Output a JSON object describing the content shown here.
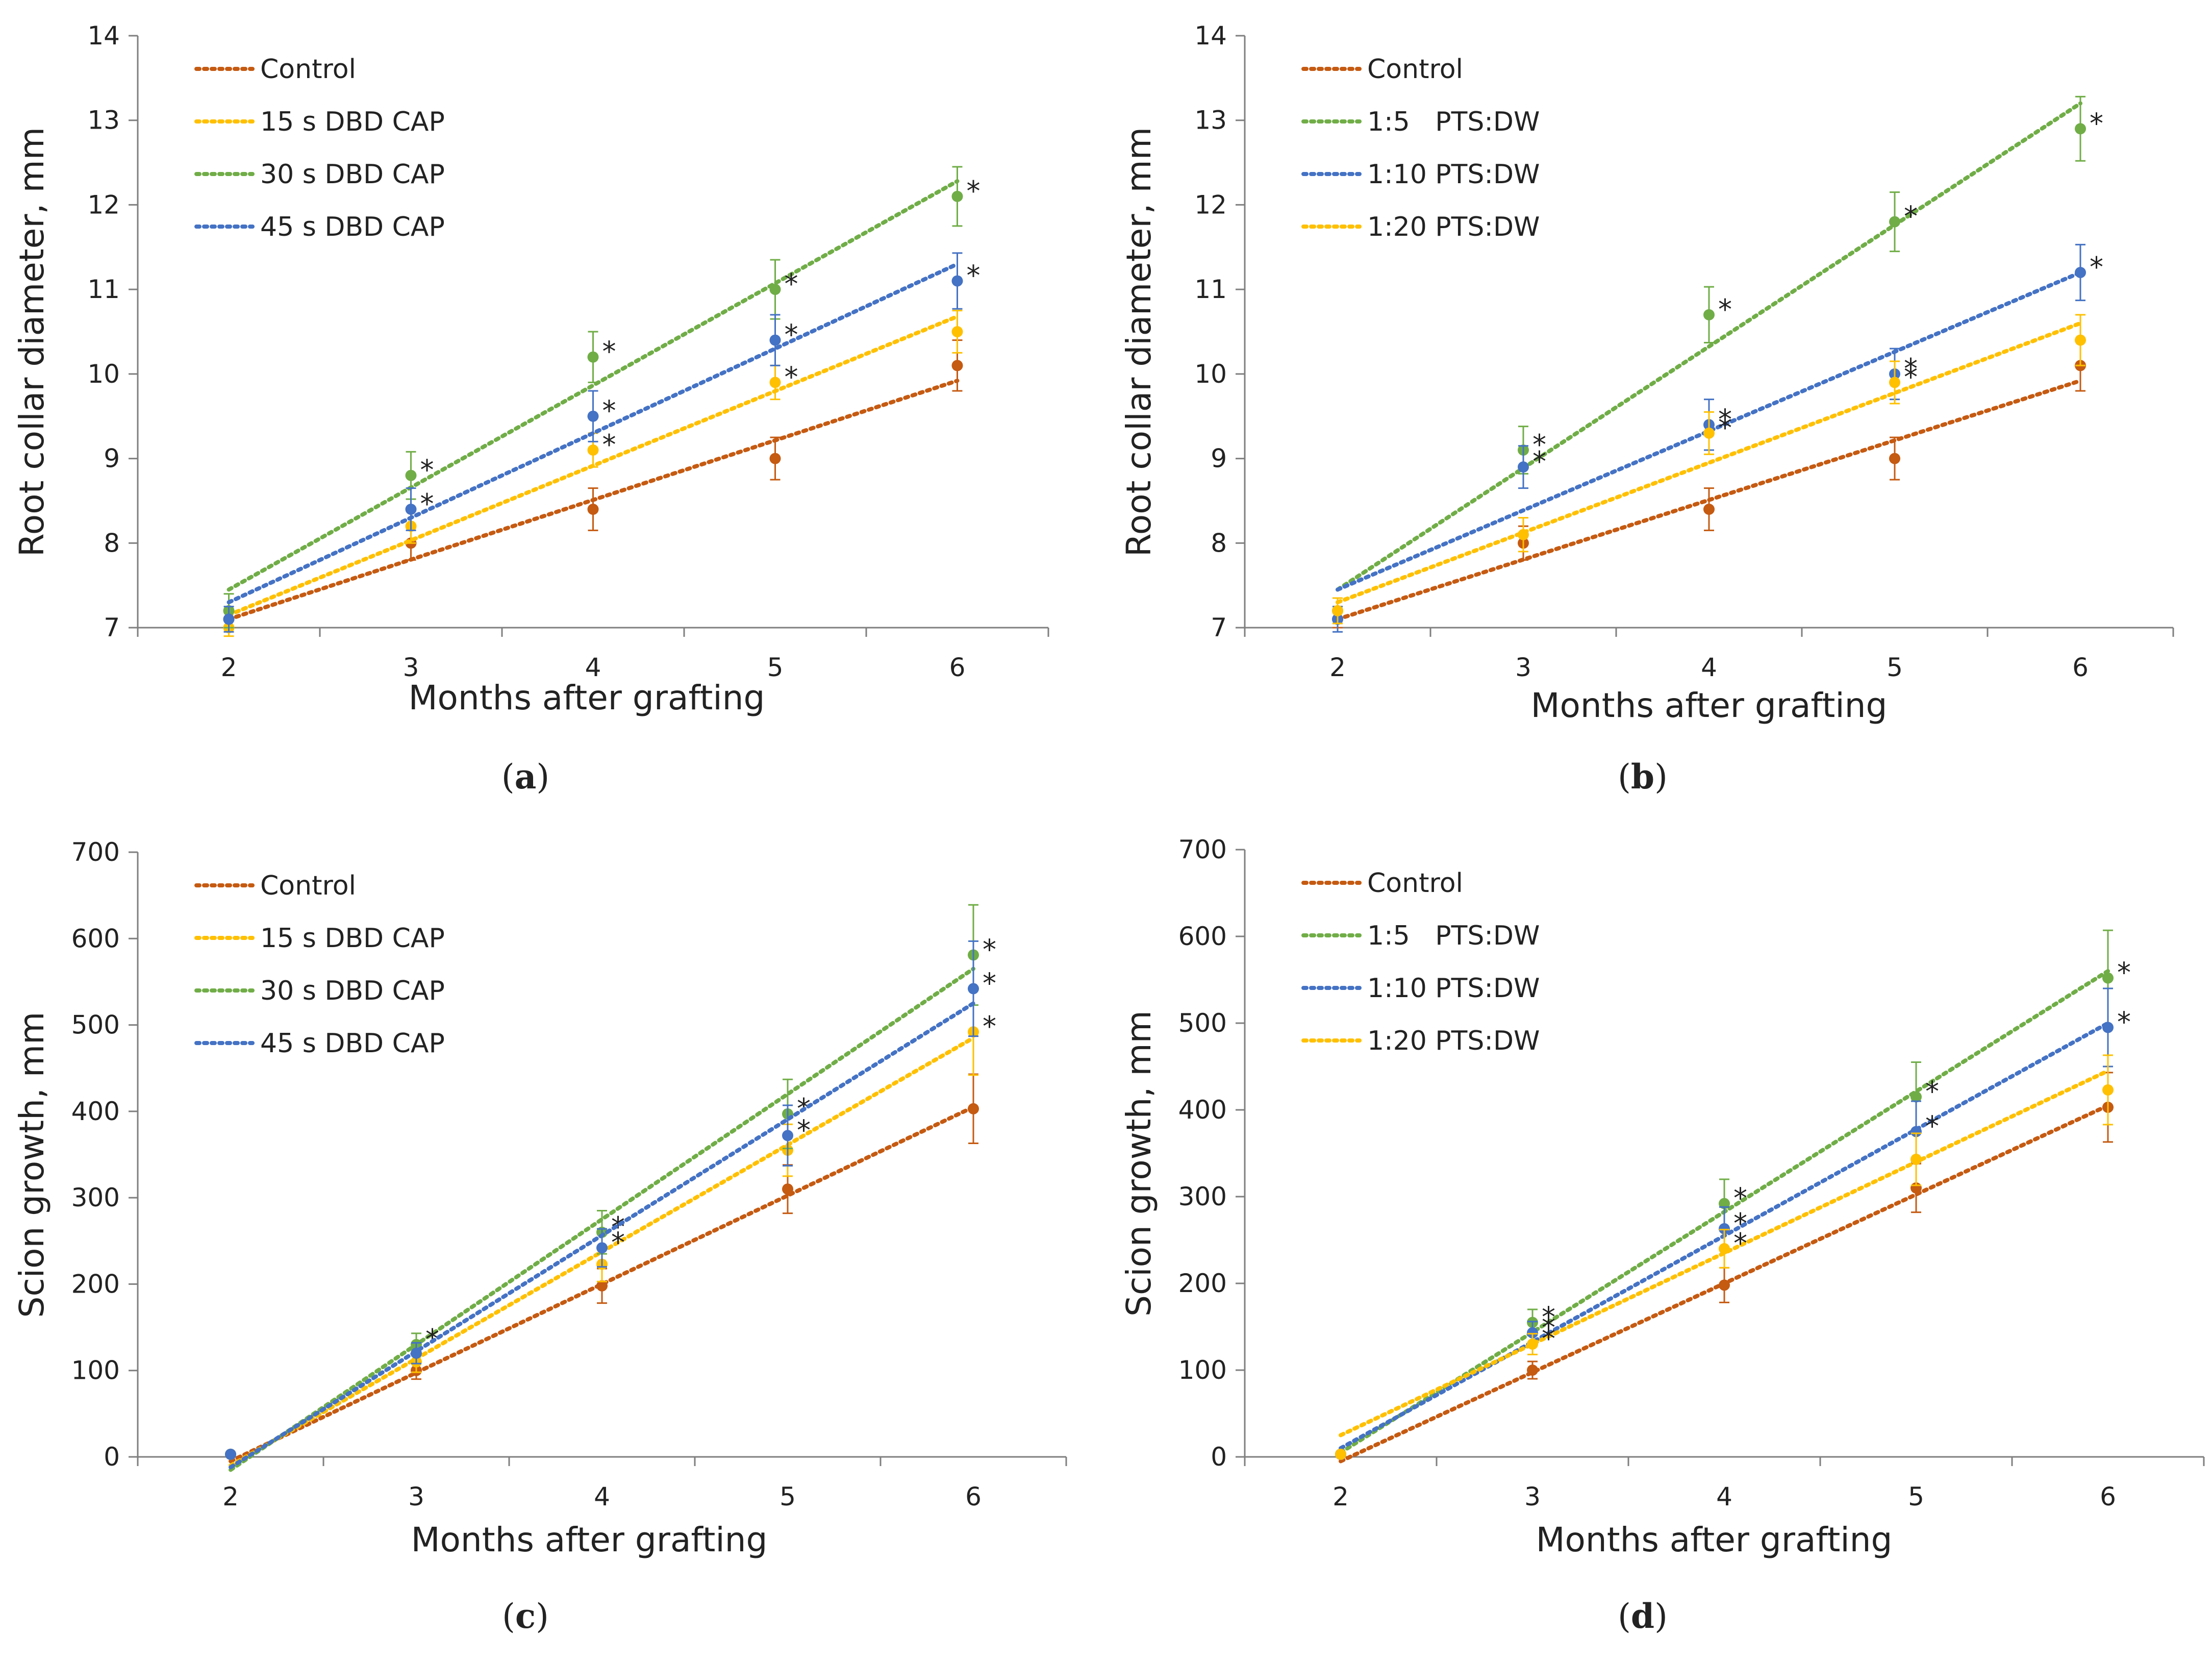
{
  "colors": {
    "control": "#C55A11",
    "dbd15": "#FFC000",
    "dbd30": "#70AD47",
    "dbd45": "#4472C4",
    "pts5": "#70AD47",
    "pts10": "#4472C4",
    "pts20": "#FFC000",
    "axis": "#7f7f7f",
    "text": "#222222"
  },
  "chart_data": [
    {
      "id": "a",
      "type": "scatter",
      "panel_label": "a",
      "xlabel": "Months after grafting",
      "ylabel": "Root collar diameter, mm",
      "x": [
        2,
        3,
        4,
        5,
        6
      ],
      "xticks": [
        "2",
        "3",
        "4",
        "5",
        "6"
      ],
      "xlim": [
        1.5,
        6.5
      ],
      "ylim": [
        7,
        14
      ],
      "yticks": [
        "7",
        "8",
        "9",
        "10",
        "11",
        "12",
        "13",
        "14"
      ],
      "legend": "top-left",
      "series": [
        {
          "key": "control",
          "name": "Control",
          "color_key": "control",
          "values": [
            7.1,
            8.0,
            8.4,
            9.0,
            10.1
          ],
          "errors": [
            0.1,
            0.2,
            0.25,
            0.25,
            0.3
          ],
          "trend": [
            7.1,
            9.92
          ],
          "stars": [
            false,
            false,
            false,
            false,
            false
          ]
        },
        {
          "key": "dbd15",
          "name": "15 s DBD CAP",
          "color_key": "dbd15",
          "values": [
            7.0,
            8.2,
            9.1,
            9.9,
            10.5
          ],
          "errors": [
            0.1,
            0.2,
            0.2,
            0.2,
            0.25
          ],
          "trend": [
            7.15,
            10.68
          ],
          "stars": [
            false,
            false,
            true,
            true,
            false
          ]
        },
        {
          "key": "dbd30",
          "name": "30 s DBD CAP",
          "color_key": "dbd30",
          "values": [
            7.2,
            8.8,
            10.2,
            11.0,
            12.1
          ],
          "errors": [
            0.2,
            0.28,
            0.3,
            0.35,
            0.35
          ],
          "trend": [
            7.45,
            12.28
          ],
          "stars": [
            false,
            true,
            true,
            true,
            true
          ]
        },
        {
          "key": "dbd45",
          "name": "45 s DBD CAP",
          "color_key": "dbd45",
          "values": [
            7.1,
            8.4,
            9.5,
            10.4,
            11.1
          ],
          "errors": [
            0.15,
            0.25,
            0.3,
            0.3,
            0.33
          ],
          "trend": [
            7.3,
            11.3
          ],
          "stars": [
            false,
            true,
            true,
            true,
            true
          ]
        }
      ]
    },
    {
      "id": "b",
      "type": "scatter",
      "panel_label": "b",
      "xlabel": "Months after grafting",
      "ylabel": "Root collar diameter, mm",
      "x": [
        2,
        3,
        4,
        5,
        6
      ],
      "xticks": [
        "2",
        "3",
        "4",
        "5",
        "6"
      ],
      "xlim": [
        1.5,
        6.5
      ],
      "ylim": [
        7,
        14
      ],
      "yticks": [
        "7",
        "8",
        "9",
        "10",
        "11",
        "12",
        "13",
        "14"
      ],
      "legend": "top-left",
      "series": [
        {
          "key": "control",
          "name": "Control",
          "color_key": "control",
          "values": [
            7.1,
            8.0,
            8.4,
            9.0,
            10.1
          ],
          "errors": [
            0.1,
            0.2,
            0.25,
            0.25,
            0.3
          ],
          "trend": [
            7.1,
            9.92
          ],
          "stars": [
            false,
            false,
            false,
            false,
            false
          ]
        },
        {
          "key": "pts5",
          "name": "1:5   PTS:DW",
          "color_key": "pts5",
          "values": [
            7.2,
            9.1,
            10.7,
            11.8,
            12.9
          ],
          "errors": [
            0.15,
            0.28,
            0.33,
            0.35,
            0.38
          ],
          "trend": [
            7.45,
            13.2
          ],
          "stars": [
            false,
            true,
            true,
            true,
            true
          ]
        },
        {
          "key": "pts10",
          "name": "1:10 PTS:DW",
          "color_key": "pts10",
          "values": [
            7.1,
            8.9,
            9.4,
            10.0,
            11.2
          ],
          "errors": [
            0.15,
            0.25,
            0.3,
            0.3,
            0.33
          ],
          "trend": [
            7.45,
            11.2
          ],
          "stars": [
            false,
            true,
            true,
            true,
            true
          ]
        },
        {
          "key": "pts20",
          "name": "1:20 PTS:DW",
          "color_key": "pts20",
          "values": [
            7.2,
            8.1,
            9.3,
            9.9,
            10.4
          ],
          "errors": [
            0.15,
            0.2,
            0.25,
            0.25,
            0.3
          ],
          "trend": [
            7.3,
            10.6
          ],
          "stars": [
            false,
            false,
            true,
            true,
            false
          ]
        }
      ]
    },
    {
      "id": "c",
      "type": "scatter",
      "panel_label": "c",
      "xlabel": "Months after grafting",
      "ylabel": "Scion growth, mm",
      "x": [
        2,
        3,
        4,
        5,
        6
      ],
      "xticks": [
        "2",
        "3",
        "4",
        "5",
        "6"
      ],
      "xlim": [
        1.5,
        6.5
      ],
      "ylim": [
        0,
        700
      ],
      "yticks": [
        "0",
        "100",
        "200",
        "300",
        "400",
        "500",
        "600",
        "700"
      ],
      "legend": "top-left",
      "series": [
        {
          "key": "control",
          "name": "Control",
          "color_key": "control",
          "values": [
            3,
            100,
            198,
            310,
            403
          ],
          "errors": [
            2,
            10,
            20,
            28,
            40
          ],
          "trend": [
            -5,
            405
          ],
          "stars": [
            false,
            false,
            false,
            false,
            false
          ]
        },
        {
          "key": "dbd15",
          "name": "15 s DBD CAP",
          "color_key": "dbd15",
          "values": [
            3,
            110,
            223,
            355,
            492
          ],
          "errors": [
            2,
            12,
            20,
            30,
            50
          ],
          "trend": [
            -10,
            485
          ],
          "stars": [
            false,
            false,
            false,
            false,
            true
          ]
        },
        {
          "key": "dbd30",
          "name": "30 s DBD CAP",
          "color_key": "dbd30",
          "values": [
            3,
            130,
            260,
            397,
            581
          ],
          "errors": [
            2,
            13,
            25,
            40,
            58
          ],
          "trend": [
            -15,
            565
          ],
          "stars": [
            false,
            true,
            true,
            true,
            true
          ]
        },
        {
          "key": "dbd45",
          "name": "45 s DBD CAP",
          "color_key": "dbd45",
          "values": [
            3,
            120,
            242,
            372,
            542
          ],
          "errors": [
            2,
            12,
            22,
            35,
            55
          ],
          "trend": [
            -12,
            525
          ],
          "stars": [
            false,
            false,
            true,
            true,
            true
          ]
        }
      ]
    },
    {
      "id": "d",
      "type": "scatter",
      "panel_label": "d",
      "xlabel": "Months after grafting",
      "ylabel": "Scion growth, mm",
      "x": [
        2,
        3,
        4,
        5,
        6
      ],
      "xticks": [
        "2",
        "3",
        "4",
        "5",
        "6"
      ],
      "xlim": [
        1.5,
        6.5
      ],
      "ylim": [
        0,
        700
      ],
      "yticks": [
        "0",
        "100",
        "200",
        "300",
        "400",
        "500",
        "600",
        "700"
      ],
      "legend": "top-left",
      "series": [
        {
          "key": "control",
          "name": "Control",
          "color_key": "control",
          "values": [
            3,
            100,
            198,
            310,
            403
          ],
          "errors": [
            2,
            10,
            20,
            28,
            40
          ],
          "trend": [
            -5,
            405
          ],
          "stars": [
            false,
            false,
            false,
            false,
            false
          ]
        },
        {
          "key": "pts5",
          "name": "1:5   PTS:DW",
          "color_key": "pts5",
          "values": [
            3,
            155,
            292,
            415,
            552
          ],
          "errors": [
            2,
            15,
            28,
            40,
            55
          ],
          "trend": [
            5,
            560
          ],
          "stars": [
            false,
            true,
            true,
            true,
            true
          ]
        },
        {
          "key": "pts10",
          "name": "1:10 PTS:DW",
          "color_key": "pts10",
          "values": [
            3,
            143,
            263,
            375,
            495
          ],
          "errors": [
            2,
            13,
            25,
            35,
            45
          ],
          "trend": [
            10,
            500
          ],
          "stars": [
            false,
            true,
            true,
            true,
            true
          ]
        },
        {
          "key": "pts20",
          "name": "1:20 PTS:DW",
          "color_key": "pts20",
          "values": [
            3,
            130,
            240,
            343,
            423
          ],
          "errors": [
            2,
            12,
            22,
            30,
            40
          ],
          "trend": [
            25,
            445
          ],
          "stars": [
            false,
            true,
            true,
            false,
            false
          ]
        }
      ]
    }
  ]
}
